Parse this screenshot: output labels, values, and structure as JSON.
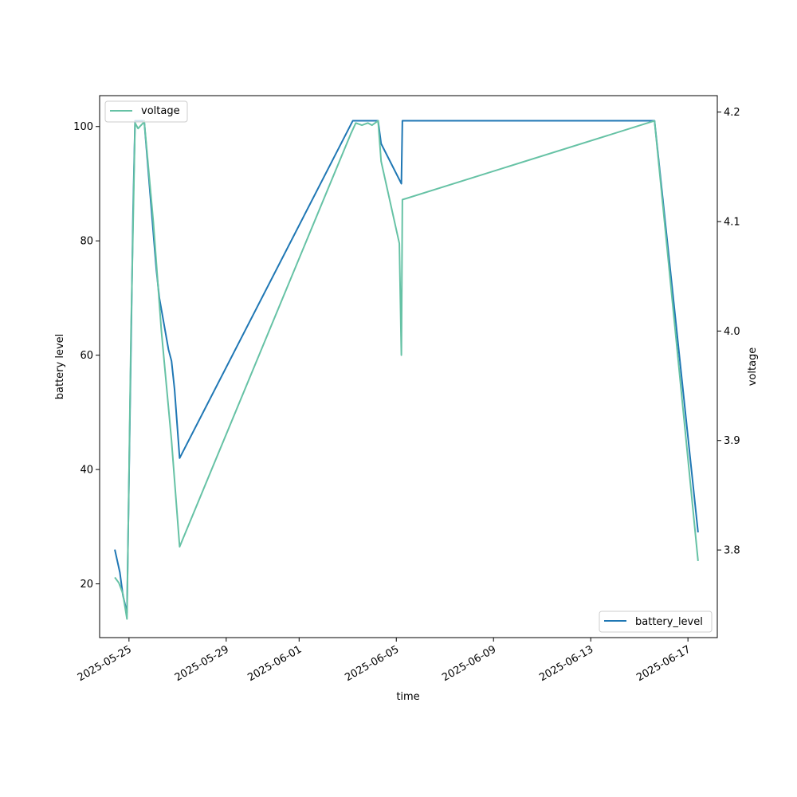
{
  "chart_data": {
    "type": "line",
    "xlabel": "time",
    "ylabel_left": "battery level",
    "ylabel_right": "voltage",
    "x_ticks": [
      "2025-05-25",
      "2025-05-29",
      "2025-06-01",
      "2025-06-05",
      "2025-06-09",
      "2025-06-13",
      "2025-06-17"
    ],
    "y_left_ticks": [
      20,
      40,
      60,
      80,
      100
    ],
    "y_right_ticks": [
      3.8,
      3.9,
      4.0,
      4.1,
      4.2
    ],
    "xlim": [
      "2025-05-23T19:00",
      "2025-06-18T05:00"
    ],
    "ylim_left": [
      10.6,
      105.4
    ],
    "ylim_right": [
      3.72,
      4.215
    ],
    "legend_left": {
      "position": "upper-left",
      "label": "voltage"
    },
    "legend_right": {
      "position": "lower-right",
      "label": "battery_level"
    },
    "colors": {
      "battery_level": "#1f77b4",
      "voltage": "#66c2a5"
    },
    "series": [
      {
        "name": "battery_level",
        "axis": "left",
        "points": [
          [
            "2025-05-24T10:00",
            26
          ],
          [
            "2025-05-24T15:00",
            22
          ],
          [
            "2025-05-24T18:00",
            18
          ],
          [
            "2025-05-24T22:00",
            15
          ],
          [
            "2025-05-25T01:00",
            50
          ],
          [
            "2025-05-25T04:00",
            85
          ],
          [
            "2025-05-25T06:00",
            101
          ],
          [
            "2025-05-25T12:00",
            101
          ],
          [
            "2025-05-25T15:00",
            101
          ],
          [
            "2025-05-25T21:00",
            88
          ],
          [
            "2025-05-26T03:00",
            75
          ],
          [
            "2025-05-26T06:00",
            70
          ],
          [
            "2025-05-26T15:00",
            61
          ],
          [
            "2025-05-26T18:00",
            59
          ],
          [
            "2025-05-26T21:00",
            54
          ],
          [
            "2025-05-27T02:00",
            42
          ],
          [
            "2025-06-03T05:00",
            101
          ],
          [
            "2025-06-03T12:00",
            101
          ],
          [
            "2025-06-04T06:00",
            101
          ],
          [
            "2025-06-04T09:00",
            97
          ],
          [
            "2025-06-05T05:00",
            90
          ],
          [
            "2025-06-05T06:00",
            101
          ],
          [
            "2025-06-15T15:00",
            101
          ],
          [
            "2025-06-17T10:00",
            29
          ]
        ]
      },
      {
        "name": "voltage",
        "axis": "right",
        "points": [
          [
            "2025-05-24T10:00",
            3.775
          ],
          [
            "2025-05-24T14:00",
            3.77
          ],
          [
            "2025-05-24T18:00",
            3.76
          ],
          [
            "2025-05-24T22:00",
            3.737
          ],
          [
            "2025-05-25T02:00",
            4.0
          ],
          [
            "2025-05-25T06:00",
            4.19
          ],
          [
            "2025-05-25T09:00",
            4.185
          ],
          [
            "2025-05-25T14:00",
            4.19
          ],
          [
            "2025-05-25T15:00",
            4.192
          ],
          [
            "2025-05-26T00:00",
            4.1
          ],
          [
            "2025-05-26T08:00",
            4.0
          ],
          [
            "2025-05-26T18:00",
            3.9
          ],
          [
            "2025-05-27T02:00",
            3.803
          ],
          [
            "2025-06-03T03:00",
            4.18
          ],
          [
            "2025-06-03T08:00",
            4.19
          ],
          [
            "2025-06-03T14:00",
            4.188
          ],
          [
            "2025-06-03T20:00",
            4.19
          ],
          [
            "2025-06-04T00:00",
            4.188
          ],
          [
            "2025-06-04T06:00",
            4.192
          ],
          [
            "2025-06-04T09:00",
            4.155
          ],
          [
            "2025-06-05T03:00",
            4.08
          ],
          [
            "2025-06-05T05:00",
            3.978
          ],
          [
            "2025-06-05T06:00",
            4.12
          ],
          [
            "2025-06-15T15:00",
            4.192
          ],
          [
            "2025-06-17T10:00",
            3.79
          ]
        ]
      }
    ]
  }
}
